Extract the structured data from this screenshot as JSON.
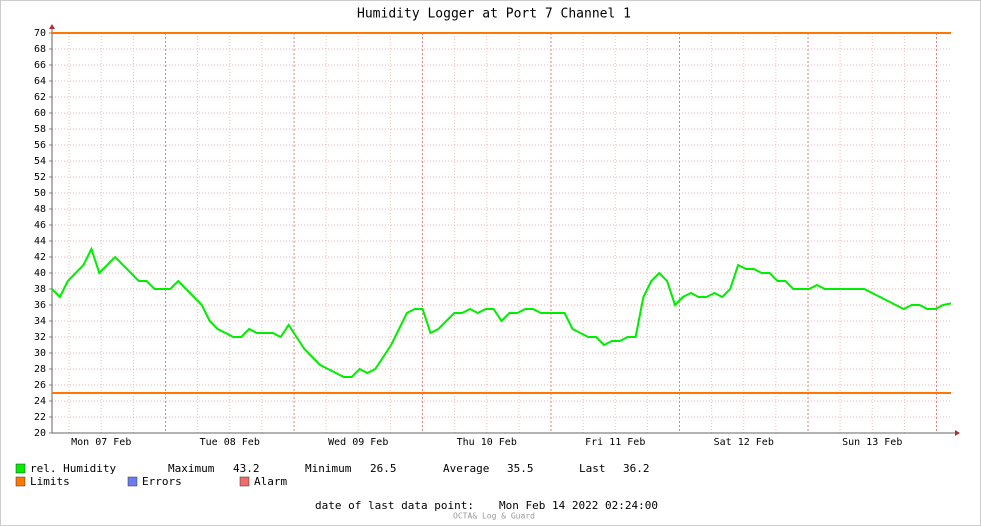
{
  "chart_data": {
    "type": "line",
    "title": "Humidity Logger at Port 7 Channel 1",
    "x_labels": [
      "Mon 07 Feb",
      "Tue 08 Feb",
      "Wed 09 Feb",
      "Thu 10 Feb",
      "Fri 11 Feb",
      "Sat 12 Feb",
      "Sun 13 Feb"
    ],
    "ylim": [
      20,
      70
    ],
    "yticks": [
      20,
      22,
      24,
      26,
      28,
      30,
      32,
      34,
      36,
      38,
      40,
      42,
      44,
      46,
      48,
      50,
      52,
      54,
      56,
      58,
      60,
      62,
      64,
      66,
      68,
      70
    ],
    "grid": true,
    "series": [
      {
        "name": "rel. Humidity",
        "color": "#00ee00",
        "values": [
          38,
          37,
          39,
          40,
          41,
          43,
          40,
          41,
          42,
          41,
          40,
          39,
          39,
          38,
          38,
          38,
          39,
          38,
          37,
          36,
          34,
          33,
          32.5,
          32,
          32,
          33,
          32.5,
          32.5,
          32.5,
          32,
          33.5,
          32,
          30.5,
          29.5,
          28.5,
          28,
          27.5,
          27,
          27,
          28,
          27.5,
          28,
          29.5,
          31,
          33,
          35,
          35.5,
          35.5,
          32.5,
          33,
          34,
          35,
          35,
          35.5,
          35,
          35.5,
          35.5,
          34,
          35,
          35,
          35.5,
          35.5,
          35,
          35,
          35,
          35,
          33,
          32.5,
          32,
          32,
          31,
          31.5,
          31.5,
          32,
          32,
          37,
          39,
          40,
          39,
          36,
          37,
          37.5,
          37,
          37,
          37.5,
          37,
          38,
          41,
          40.5,
          40.5,
          40,
          40,
          39,
          39,
          38,
          38,
          38,
          38.5,
          38,
          38,
          38,
          38,
          38,
          38,
          37.5,
          37,
          36.5,
          36,
          35.5,
          36,
          36,
          35.5,
          35.5,
          36,
          36.2
        ]
      }
    ],
    "limits": {
      "name": "Limits",
      "color": "#ff7700",
      "values": [
        70,
        25
      ]
    },
    "legend_extra": [
      {
        "name": "Errors",
        "color": "#6b7cf0"
      },
      {
        "name": "Alarm",
        "color": "#f06b6b"
      }
    ],
    "stats": [
      {
        "label": "Maximum",
        "value": 43.2
      },
      {
        "label": "Minimum",
        "value": 26.5
      },
      {
        "label": "Average",
        "value": 35.5
      },
      {
        "label": "Last",
        "value": 36.2
      }
    ],
    "last_point_label": "date of last data point:",
    "last_point_date": "Mon Feb 14 2022 02:24:00",
    "footer": "OCTA& Log & Guard"
  }
}
